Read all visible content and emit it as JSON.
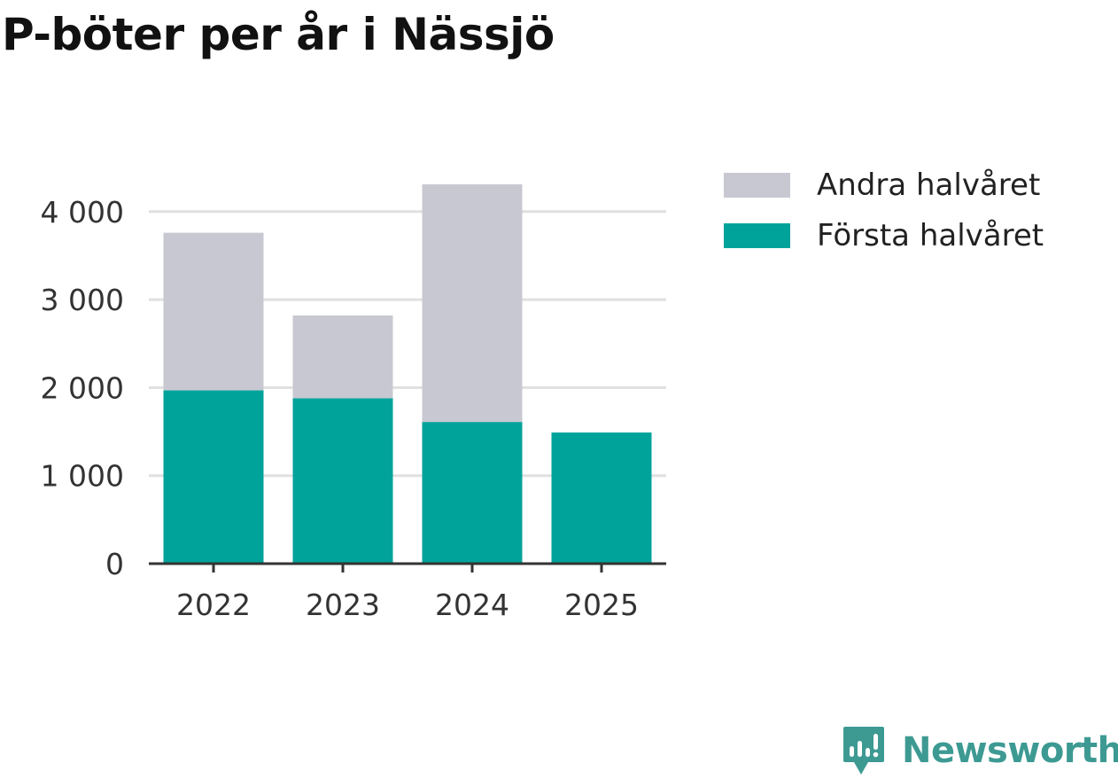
{
  "chart_data": {
    "type": "bar",
    "stacked": true,
    "title": "P-böter per år i Nässjö",
    "categories": [
      "2022",
      "2023",
      "2024",
      "2025"
    ],
    "series": [
      {
        "name": "Första halvåret",
        "color": "#00a39a",
        "values": [
          1970,
          1880,
          1610,
          1490
        ]
      },
      {
        "name": "Andra halvåret",
        "color": "#c8c8d2",
        "values": [
          1790,
          940,
          2700,
          0
        ]
      }
    ],
    "legend": [
      "Andra halvåret",
      "Första halvåret"
    ],
    "legend_position": "right",
    "yticks": [
      0,
      1000,
      2000,
      3000,
      4000
    ],
    "ytick_labels": [
      "0",
      "1 000",
      "2 000",
      "3 000",
      "4 000"
    ],
    "ylim": [
      0,
      4400
    ],
    "xlabel": "",
    "ylabel": "",
    "grid": true
  },
  "brand": {
    "name": "Newsworthy",
    "icon": "newsworthy-logo-icon",
    "color": "#3d9a93"
  }
}
